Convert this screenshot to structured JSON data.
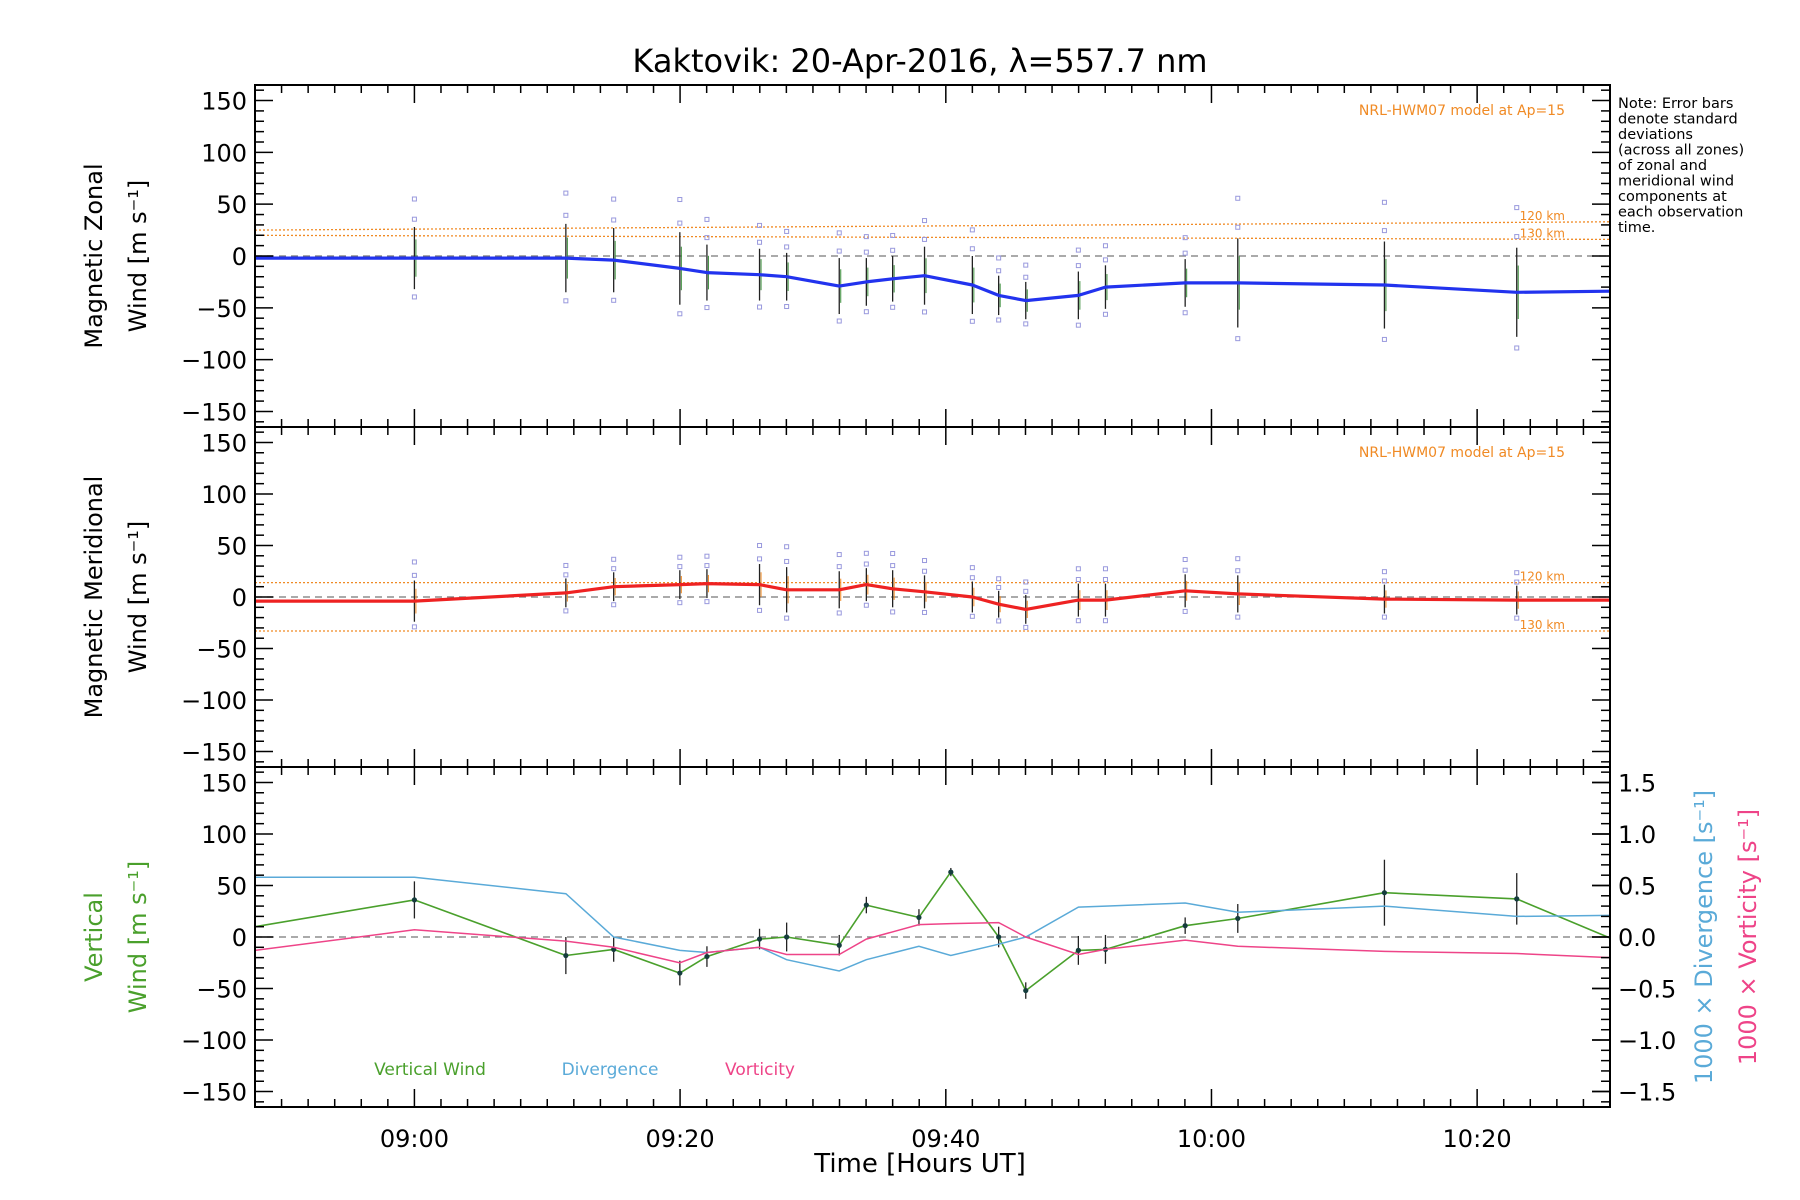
{
  "chart_data": {
    "type": "line",
    "title": "Kaktovik: 20-Apr-2016, λ=557.7 nm",
    "xlabel": "Time [Hours UT]",
    "xlim": [
      8.8,
      10.5
    ],
    "x_tick_labels": [
      "09:00",
      "09:20",
      "09:40",
      "10:00",
      "10:20"
    ],
    "x_tick_values": [
      9.0,
      9.3333,
      9.6667,
      10.0,
      10.3333
    ],
    "note": "Note: Error bars denote standard deviations (across all zones) of zonal and meridional wind components at each observation time.",
    "y_ticks": [
      -150,
      -100,
      -50,
      0,
      50,
      100,
      150
    ],
    "y_tick_labels": [
      "−150",
      "−100",
      "−50",
      "0",
      "50",
      "100",
      "150"
    ],
    "colors": {
      "zonal": "#2233ee",
      "meridional": "#ee2222",
      "vertical": "#4aa02c",
      "divergence": "#5aaad8",
      "vorticity": "#ee4488",
      "model": "#f08a24",
      "scatter": "#9999dd"
    },
    "panels": [
      {
        "name": "zonal",
        "ylabel_line1": "Magnetic Zonal",
        "ylabel_line2": "Wind [m s⁻¹]",
        "ylim": [
          -165,
          165
        ],
        "model_label": "NRL-HWM07 model at Ap=15",
        "model_curves": [
          {
            "name": "120 km",
            "x": [
              8.8,
              10.5
            ],
            "y": [
              25,
              33
            ]
          },
          {
            "name": "130 km",
            "x": [
              8.8,
              10.5
            ],
            "y": [
              20,
              16
            ]
          }
        ],
        "series": [
          {
            "name": "Zonal wind",
            "x": [
              8.8,
              9.0,
              9.19,
              9.25,
              9.333,
              9.367,
              9.433,
              9.467,
              9.533,
              9.567,
              9.6,
              9.64,
              9.7,
              9.733,
              9.767,
              9.833,
              9.867,
              9.967,
              10.033,
              10.217,
              10.383,
              10.5
            ],
            "y": [
              -2,
              -2,
              -2,
              -4,
              -12,
              -16,
              -18,
              -20,
              -29,
              -25,
              -22,
              -19,
              -28,
              -38,
              -43,
              -38,
              -30,
              -26,
              -26,
              -28,
              -35,
              -34
            ],
            "err": [
              0,
              30,
              33,
              31,
              35,
              27,
              25,
              23,
              27,
              23,
              22,
              28,
              28,
              19,
              18,
              23,
              21,
              23,
              43,
              42,
              43,
              0
            ]
          }
        ]
      },
      {
        "name": "meridional",
        "ylabel_line1": "Magnetic Meridional",
        "ylabel_line2": "Wind [m s⁻¹]",
        "ylim": [
          -165,
          165
        ],
        "model_label": "NRL-HWM07 model at Ap=15",
        "model_curves": [
          {
            "name": "120 km",
            "x": [
              8.8,
              10.5
            ],
            "y": [
              14,
              14
            ]
          },
          {
            "name": "130 km",
            "x": [
              8.8,
              10.5
            ],
            "y": [
              -33,
              -33
            ]
          }
        ],
        "series": [
          {
            "name": "Meridional wind",
            "x": [
              8.8,
              9.0,
              9.19,
              9.25,
              9.333,
              9.367,
              9.433,
              9.467,
              9.533,
              9.567,
              9.6,
              9.64,
              9.7,
              9.733,
              9.767,
              9.833,
              9.867,
              9.967,
              10.033,
              10.217,
              10.383,
              10.5
            ],
            "y": [
              -4,
              -4,
              4,
              10,
              12,
              13,
              12,
              7,
              7,
              12,
              8,
              5,
              0,
              -7,
              -12,
              -3,
              -3,
              6,
              3,
              -2,
              -3,
              -3
            ],
            "err": [
              0,
              20,
              14,
              14,
              14,
              14,
              20,
              22,
              18,
              16,
              18,
              16,
              15,
              13,
              14,
              16,
              16,
              16,
              18,
              14,
              14,
              0
            ]
          }
        ]
      },
      {
        "name": "vertical",
        "ylabel_line1": "Vertical",
        "ylabel_line2": "Wind [m s⁻¹]",
        "ylim": [
          -165,
          165
        ],
        "right_axis": {
          "ylim": [
            -1.65,
            1.65
          ],
          "ticks": [
            -1.5,
            -1.0,
            -0.5,
            0.0,
            0.5,
            1.0,
            1.5
          ],
          "tick_labels": [
            "−1.5",
            "−1.0",
            "−0.5",
            "0.0",
            "0.5",
            "1.0",
            "1.5"
          ],
          "label_divergence": "1000 × Divergence [s⁻¹]",
          "label_vorticity": "1000 × Vorticity [s⁻¹]"
        },
        "legend": [
          "Vertical Wind",
          "Divergence",
          "Vorticity"
        ],
        "series": [
          {
            "name": "Vertical Wind",
            "x": [
              8.8,
              9.0,
              9.19,
              9.25,
              9.333,
              9.367,
              9.433,
              9.467,
              9.533,
              9.567,
              9.633,
              9.673,
              9.733,
              9.767,
              9.833,
              9.867,
              9.967,
              10.033,
              10.217,
              10.383,
              10.5
            ],
            "y": [
              10,
              36,
              -18,
              -12,
              -35,
              -19,
              -2,
              0,
              -8,
              31,
              19,
              63,
              0,
              -52,
              -13,
              -12,
              11,
              18,
              43,
              37,
              -1
            ],
            "err": [
              0,
              18,
              18,
              12,
              12,
              10,
              10,
              14,
              10,
              8,
              8,
              4,
              10,
              8,
              14,
              14,
              8,
              14,
              32,
              25,
              0
            ]
          },
          {
            "name": "Divergence",
            "axis": "right",
            "x": [
              8.8,
              9.0,
              9.19,
              9.25,
              9.333,
              9.367,
              9.433,
              9.467,
              9.533,
              9.567,
              9.633,
              9.673,
              9.733,
              9.767,
              9.833,
              9.867,
              9.967,
              10.033,
              10.217,
              10.383,
              10.5
            ],
            "y": [
              0.58,
              0.58,
              0.42,
              0.0,
              -0.13,
              -0.15,
              -0.1,
              -0.22,
              -0.33,
              -0.22,
              -0.09,
              -0.18,
              -0.07,
              0.0,
              0.29,
              0.3,
              0.33,
              0.24,
              0.3,
              0.2,
              0.21
            ]
          },
          {
            "name": "Vorticity",
            "axis": "right",
            "x": [
              8.8,
              9.0,
              9.19,
              9.25,
              9.333,
              9.367,
              9.433,
              9.467,
              9.533,
              9.567,
              9.633,
              9.673,
              9.733,
              9.767,
              9.833,
              9.867,
              9.967,
              10.033,
              10.217,
              10.383,
              10.5
            ],
            "y": [
              -0.13,
              0.07,
              -0.04,
              -0.1,
              -0.25,
              -0.15,
              -0.1,
              -0.17,
              -0.17,
              -0.02,
              0.12,
              0.13,
              0.14,
              0.0,
              -0.17,
              -0.12,
              -0.03,
              -0.09,
              -0.14,
              -0.16,
              -0.2
            ]
          }
        ]
      }
    ]
  }
}
